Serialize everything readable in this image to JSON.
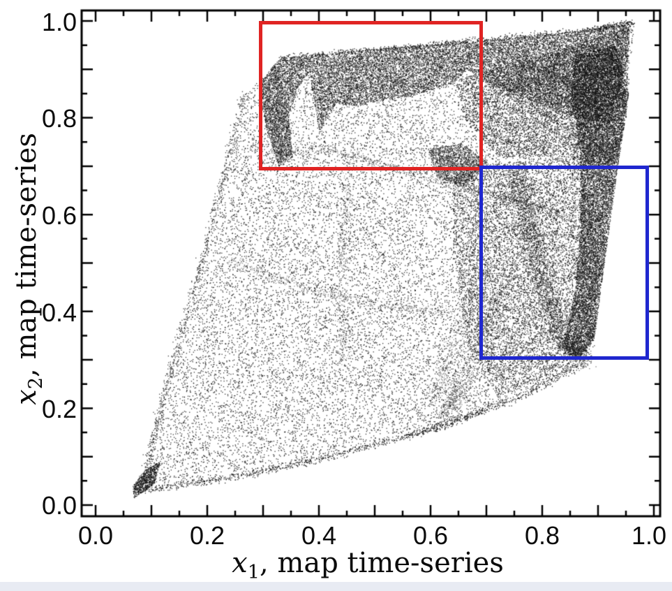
{
  "page": {
    "background": "#ffffff",
    "bottom_strip_color": "#e8ebf3"
  },
  "chart_data": {
    "type": "scatter",
    "title": "",
    "xlabel": {
      "var": "x",
      "sub": "1",
      "rest": ", map time-series"
    },
    "ylabel": {
      "var": "x",
      "sub": "2",
      "rest": ", map time-series"
    },
    "xlim": [
      -0.025,
      1.011
    ],
    "ylim": [
      -0.023,
      1.022
    ],
    "xtick_labels": [
      "0.0",
      "0.2",
      "0.4",
      "0.6",
      "0.8",
      "1.0"
    ],
    "ytick_labels": [
      "0.0",
      "0.2",
      "0.4",
      "0.6",
      "0.8",
      "1.0"
    ],
    "xtick_values": [
      0.0,
      0.2,
      0.4,
      0.6,
      0.8,
      1.0
    ],
    "ytick_values": [
      0.0,
      0.2,
      0.4,
      0.6,
      0.8,
      1.0
    ],
    "major_tick_step": 0.1,
    "minor_tick_step": 0.05,
    "grid": false,
    "legend": null,
    "axis_color": "#000000",
    "point_color": "#141414",
    "description": "Approximately 100,000 iterates of a chaotic map plotted as x1 vs x2 (map time-series), forming a folded attractor that fills a curved quadrilateral from (0.08,0.02) to (0.97,1.0) with dense dark fold bands along the top edge and the right side. A red rectangle marks the subregion [0.30,0.69]x[0.70,1.00]; a blue rectangle marks [0.69,0.99]x[0.30,0.70].",
    "annotations": [
      {
        "name": "red-zoom-box",
        "shape": "rect",
        "x": [
          0.296,
          0.691
        ],
        "y": [
          0.695,
          0.996
        ],
        "color": "#e02423",
        "linewidth": 5
      },
      {
        "name": "blue-zoom-box",
        "shape": "rect",
        "x": [
          0.691,
          0.989
        ],
        "y": [
          0.303,
          0.697
        ],
        "color": "#1f27cf",
        "linewidth": 5
      }
    ],
    "attractor": {
      "seed": 20240914,
      "regions": [
        {
          "name": "base-footprint",
          "n": 21000,
          "alpha": 0.85,
          "size": 1.3,
          "poly": [
            [
              0.08,
              0.03
            ],
            [
              0.13,
              0.27
            ],
            [
              0.205,
              0.575
            ],
            [
              0.266,
              0.85
            ],
            [
              0.315,
              0.9
            ],
            [
              0.332,
              0.925
            ],
            [
              0.45,
              0.938
            ],
            [
              0.62,
              0.953
            ],
            [
              0.8,
              0.972
            ],
            [
              0.965,
              0.995
            ],
            [
              0.955,
              0.88
            ],
            [
              0.945,
              0.78
            ],
            [
              0.93,
              0.7
            ],
            [
              0.905,
              0.45
            ],
            [
              0.893,
              0.33
            ],
            [
              0.875,
              0.295
            ],
            [
              0.82,
              0.262
            ],
            [
              0.72,
              0.21
            ],
            [
              0.64,
              0.17
            ],
            [
              0.5,
              0.125
            ],
            [
              0.35,
              0.08
            ],
            [
              0.2,
              0.048
            ]
          ]
        },
        {
          "name": "right-lower-medium",
          "n": 7000,
          "alpha": 0.85,
          "size": 1.3,
          "poly": [
            [
              0.64,
              0.7
            ],
            [
              0.87,
              0.72
            ],
            [
              0.9,
              0.5
            ],
            [
              0.893,
              0.33
            ],
            [
              0.84,
              0.285
            ],
            [
              0.72,
              0.225
            ],
            [
              0.665,
              0.33
            ],
            [
              0.64,
              0.52
            ]
          ]
        },
        {
          "name": "upper-right-medium",
          "n": 6000,
          "alpha": 0.85,
          "size": 1.3,
          "poly": [
            [
              0.645,
              0.88
            ],
            [
              0.8,
              0.93
            ],
            [
              0.955,
              0.99
            ],
            [
              0.95,
              0.8
            ],
            [
              0.93,
              0.7
            ],
            [
              0.84,
              0.72
            ],
            [
              0.72,
              0.72
            ],
            [
              0.66,
              0.8
            ]
          ]
        },
        {
          "name": "top-dark-band",
          "n": 16000,
          "alpha": 0.8,
          "size": 1.2,
          "poly": [
            [
              0.332,
              0.925
            ],
            [
              0.45,
              0.938
            ],
            [
              0.6,
              0.952
            ],
            [
              0.75,
              0.966
            ],
            [
              0.88,
              0.982
            ],
            [
              0.955,
              0.995
            ],
            [
              0.955,
              0.93
            ],
            [
              0.92,
              0.79
            ],
            [
              0.86,
              0.8
            ],
            [
              0.78,
              0.835
            ],
            [
              0.7,
              0.875
            ],
            [
              0.665,
              0.9
            ],
            [
              0.64,
              0.872
            ],
            [
              0.6,
              0.858
            ],
            [
              0.565,
              0.845
            ],
            [
              0.52,
              0.84
            ],
            [
              0.47,
              0.825
            ],
            [
              0.43,
              0.83
            ],
            [
              0.4,
              0.772
            ],
            [
              0.382,
              0.895
            ],
            [
              0.36,
              0.86
            ],
            [
              0.345,
              0.8
            ]
          ]
        },
        {
          "name": "right-dark-curtain",
          "n": 13000,
          "alpha": 0.8,
          "size": 1.2,
          "poly": [
            [
              0.858,
              0.93
            ],
            [
              0.93,
              0.95
            ],
            [
              0.955,
              0.85
            ],
            [
              0.935,
              0.7
            ],
            [
              0.905,
              0.45
            ],
            [
              0.893,
              0.345
            ],
            [
              0.862,
              0.298
            ],
            [
              0.836,
              0.325
            ],
            [
              0.858,
              0.44
            ],
            [
              0.868,
              0.58
            ],
            [
              0.868,
              0.73
            ],
            [
              0.85,
              0.84
            ]
          ]
        },
        {
          "name": "mid-fold-tail",
          "n": 1700,
          "alpha": 0.7,
          "size": 1.2,
          "poly": [
            [
              0.595,
              0.735
            ],
            [
              0.655,
              0.748
            ],
            [
              0.7,
              0.71
            ],
            [
              0.662,
              0.658
            ],
            [
              0.612,
              0.677
            ]
          ]
        },
        {
          "name": "topleft-fold",
          "n": 2600,
          "alpha": 0.75,
          "size": 1.2,
          "poly": [
            [
              0.292,
              0.868
            ],
            [
              0.315,
              0.905
            ],
            [
              0.332,
              0.925
            ],
            [
              0.345,
              0.8
            ],
            [
              0.352,
              0.72
            ],
            [
              0.328,
              0.7
            ],
            [
              0.306,
              0.775
            ]
          ]
        },
        {
          "name": "bottom-left-tip-blob",
          "n": 700,
          "alpha": 0.8,
          "size": 1.3,
          "poly": [
            [
              0.068,
              0.015
            ],
            [
              0.105,
              0.045
            ],
            [
              0.115,
              0.09
            ],
            [
              0.09,
              0.075
            ],
            [
              0.066,
              0.04
            ]
          ]
        }
      ],
      "filaments": [
        {
          "name": "bottom-edge",
          "n": 1100,
          "w": 0.004,
          "alpha": 0.9,
          "size": 1.3,
          "pts": [
            [
              0.08,
              0.03
            ],
            [
              0.25,
              0.058
            ],
            [
              0.4,
              0.095
            ],
            [
              0.55,
              0.14
            ],
            [
              0.64,
              0.172
            ],
            [
              0.76,
              0.225
            ],
            [
              0.875,
              0.295
            ]
          ]
        },
        {
          "name": "left-edge",
          "n": 700,
          "w": 0.004,
          "alpha": 0.8,
          "size": 1.3,
          "pts": [
            [
              0.08,
              0.03
            ],
            [
              0.13,
              0.27
            ],
            [
              0.205,
              0.575
            ],
            [
              0.266,
              0.85
            ]
          ]
        },
        {
          "name": "top-edge",
          "n": 700,
          "w": 0.003,
          "alpha": 0.9,
          "size": 1.3,
          "pts": [
            [
              0.332,
              0.925
            ],
            [
              0.6,
              0.952
            ],
            [
              0.88,
              0.982
            ],
            [
              0.962,
              0.997
            ]
          ]
        },
        {
          "name": "mid-arc",
          "n": 520,
          "w": 0.006,
          "alpha": 0.55,
          "size": 1.2,
          "pts": [
            [
              0.24,
              0.505
            ],
            [
              0.33,
              0.468
            ],
            [
              0.43,
              0.432
            ],
            [
              0.54,
              0.41
            ],
            [
              0.64,
              0.398
            ]
          ]
        },
        {
          "name": "horizon-arc",
          "n": 650,
          "w": 0.005,
          "alpha": 0.6,
          "size": 1.2,
          "pts": [
            [
              0.31,
              0.725
            ],
            [
              0.42,
              0.735
            ],
            [
              0.52,
              0.7
            ],
            [
              0.62,
              0.668
            ],
            [
              0.7,
              0.646
            ],
            [
              0.78,
              0.62
            ],
            [
              0.84,
              0.6
            ]
          ]
        },
        {
          "name": "vertical-filament",
          "n": 380,
          "w": 0.005,
          "alpha": 0.5,
          "size": 1.2,
          "pts": [
            [
              0.455,
              0.725
            ],
            [
              0.445,
              0.58
            ],
            [
              0.44,
              0.44
            ],
            [
              0.444,
              0.3
            ]
          ]
        },
        {
          "name": "right-inner-fold",
          "n": 2400,
          "w": 0.011,
          "alpha": 0.7,
          "size": 1.2,
          "pts": [
            [
              0.754,
              0.695
            ],
            [
              0.77,
              0.6
            ],
            [
              0.787,
              0.52
            ],
            [
              0.81,
              0.42
            ],
            [
              0.838,
              0.335
            ],
            [
              0.875,
              0.3
            ]
          ]
        },
        {
          "name": "lower-streak-1",
          "n": 900,
          "w": 0.01,
          "alpha": 0.6,
          "size": 1.2,
          "pts": [
            [
              0.735,
              0.46
            ],
            [
              0.69,
              0.35
            ],
            [
              0.652,
              0.25
            ],
            [
              0.625,
              0.185
            ]
          ]
        },
        {
          "name": "lower-streak-2",
          "n": 500,
          "w": 0.008,
          "alpha": 0.5,
          "size": 1.2,
          "pts": [
            [
              0.7,
              0.49
            ],
            [
              0.665,
              0.4
            ],
            [
              0.63,
              0.3
            ],
            [
              0.605,
              0.22
            ]
          ]
        },
        {
          "name": "upper-right-arc-1",
          "n": 450,
          "w": 0.005,
          "alpha": 0.6,
          "size": 1.2,
          "pts": [
            [
              0.7,
              0.88
            ],
            [
              0.77,
              0.835
            ],
            [
              0.845,
              0.78
            ],
            [
              0.895,
              0.745
            ],
            [
              0.925,
              0.72
            ]
          ]
        },
        {
          "name": "upper-right-arc-2",
          "n": 380,
          "w": 0.005,
          "alpha": 0.5,
          "size": 1.2,
          "pts": [
            [
              0.74,
              0.93
            ],
            [
              0.8,
              0.895
            ],
            [
              0.86,
              0.86
            ],
            [
              0.915,
              0.845
            ]
          ]
        }
      ]
    }
  }
}
